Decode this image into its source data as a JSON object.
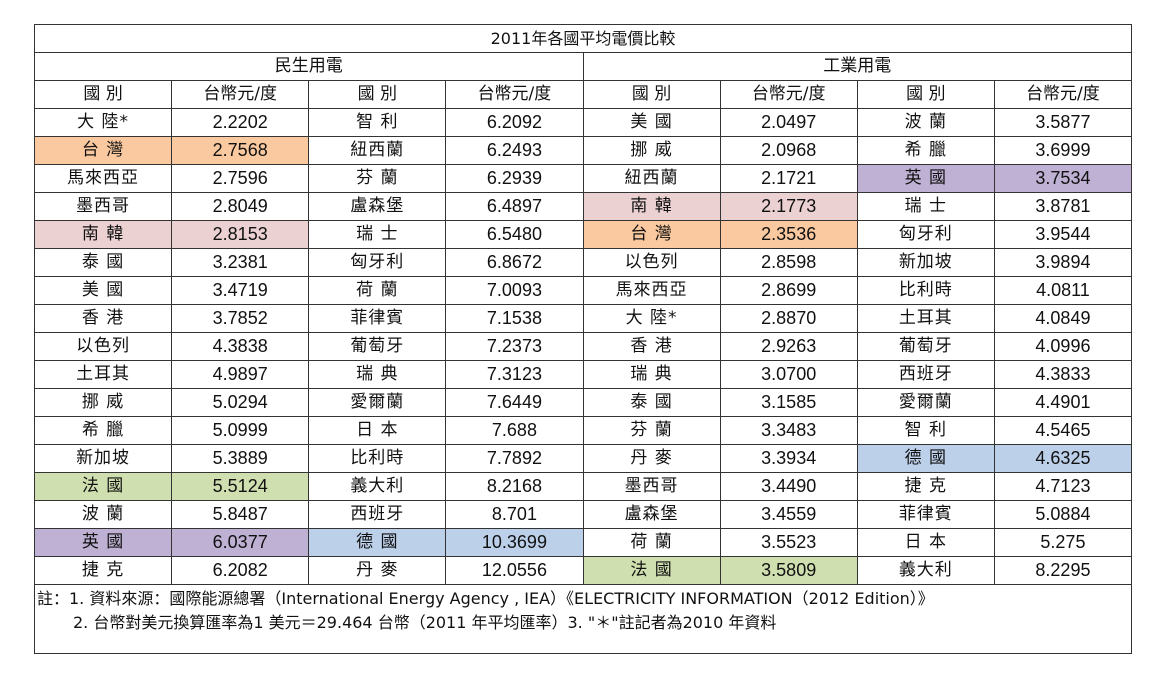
{
  "title": "2011年各國平均電價比較",
  "sections": [
    "民生用電",
    "工業用電"
  ],
  "column_headers": [
    "國 別",
    "台幣元/度",
    "國 別",
    "台幣元/度",
    "國 別",
    "台幣元/度",
    "國 別",
    "台幣元/度"
  ],
  "highlight_colors": {
    "taiwan": "#fbc99f",
    "korea": "#ecd1d2",
    "france": "#d0dfb0",
    "uk": "#bfb1d3",
    "germany": "#bcd0ea"
  },
  "rows": [
    [
      [
        "大 陸*",
        "2.2202",
        ""
      ],
      [
        "智 利",
        "6.2092",
        ""
      ],
      [
        "美 國",
        "2.0497",
        ""
      ],
      [
        "波 蘭",
        "3.5877",
        ""
      ]
    ],
    [
      [
        "台 灣",
        "2.7568",
        "taiwan"
      ],
      [
        "紐西蘭",
        "6.2493",
        ""
      ],
      [
        "挪 威",
        "2.0968",
        ""
      ],
      [
        "希 臘",
        "3.6999",
        ""
      ]
    ],
    [
      [
        "馬來西亞",
        "2.7596",
        ""
      ],
      [
        "芬 蘭",
        "6.2939",
        ""
      ],
      [
        "紐西蘭",
        "2.1721",
        ""
      ],
      [
        "英 國",
        "3.7534",
        "uk"
      ]
    ],
    [
      [
        "墨西哥",
        "2.8049",
        ""
      ],
      [
        "盧森堡",
        "6.4897",
        ""
      ],
      [
        "南 韓",
        "2.1773",
        "korea"
      ],
      [
        "瑞 士",
        "3.8781",
        ""
      ]
    ],
    [
      [
        "南 韓",
        "2.8153",
        "korea"
      ],
      [
        "瑞 士",
        "6.5480",
        ""
      ],
      [
        "台 灣",
        "2.3536",
        "taiwan"
      ],
      [
        "匈牙利",
        "3.9544",
        ""
      ]
    ],
    [
      [
        "泰 國",
        "3.2381",
        ""
      ],
      [
        "匈牙利",
        "6.8672",
        ""
      ],
      [
        "以色列",
        "2.8598",
        ""
      ],
      [
        "新加坡",
        "3.9894",
        ""
      ]
    ],
    [
      [
        "美 國",
        "3.4719",
        ""
      ],
      [
        "荷 蘭",
        "7.0093",
        ""
      ],
      [
        "馬來西亞",
        "2.8699",
        ""
      ],
      [
        "比利時",
        "4.0811",
        ""
      ]
    ],
    [
      [
        "香 港",
        "3.7852",
        ""
      ],
      [
        "菲律賓",
        "7.1538",
        ""
      ],
      [
        "大 陸*",
        "2.8870",
        ""
      ],
      [
        "土耳其",
        "4.0849",
        ""
      ]
    ],
    [
      [
        "以色列",
        "4.3838",
        ""
      ],
      [
        "葡萄牙",
        "7.2373",
        ""
      ],
      [
        "香 港",
        "2.9263",
        ""
      ],
      [
        "葡萄牙",
        "4.0996",
        ""
      ]
    ],
    [
      [
        "土耳其",
        "4.9897",
        ""
      ],
      [
        "瑞 典",
        "7.3123",
        ""
      ],
      [
        "瑞 典",
        "3.0700",
        ""
      ],
      [
        "西班牙",
        "4.3833",
        ""
      ]
    ],
    [
      [
        "挪 威",
        "5.0294",
        ""
      ],
      [
        "愛爾蘭",
        "7.6449",
        ""
      ],
      [
        "泰 國",
        "3.1585",
        ""
      ],
      [
        "愛爾蘭",
        "4.4901",
        ""
      ]
    ],
    [
      [
        "希 臘",
        "5.0999",
        ""
      ],
      [
        "日 本",
        "7.688",
        ""
      ],
      [
        "芬 蘭",
        "3.3483",
        ""
      ],
      [
        "智 利",
        "4.5465",
        ""
      ]
    ],
    [
      [
        "新加坡",
        "5.3889",
        ""
      ],
      [
        "比利時",
        "7.7892",
        ""
      ],
      [
        "丹 麥",
        "3.3934",
        ""
      ],
      [
        "德 國",
        "4.6325",
        "germany"
      ]
    ],
    [
      [
        "法 國",
        "5.5124",
        "france"
      ],
      [
        "義大利",
        "8.2168",
        ""
      ],
      [
        "墨西哥",
        "3.4490",
        ""
      ],
      [
        "捷 克",
        "4.7123",
        ""
      ]
    ],
    [
      [
        "波 蘭",
        "5.8487",
        ""
      ],
      [
        "西班牙",
        "8.701",
        ""
      ],
      [
        "盧森堡",
        "3.4559",
        ""
      ],
      [
        "菲律賓",
        "5.0884",
        ""
      ]
    ],
    [
      [
        "英 國",
        "6.0377",
        "uk"
      ],
      [
        "德 國",
        "10.3699",
        "germany"
      ],
      [
        "荷 蘭",
        "3.5523",
        ""
      ],
      [
        "日 本",
        "5.275",
        ""
      ]
    ],
    [
      [
        "捷 克",
        "6.2082",
        ""
      ],
      [
        "丹 麥",
        "12.0556",
        ""
      ],
      [
        "法 國",
        "3.5809",
        "france"
      ],
      [
        "義大利",
        "8.2295",
        ""
      ]
    ]
  ],
  "notes": {
    "line1": "註：1. 資料來源：國際能源總署（International Energy Agency , IEA）《ELECTRICITY INFORMATION（2012 Edition）》",
    "line2": "2. 台幣對美元換算匯率為1 美元＝29.464 台幣（2011 年平均匯率）3. \"＊\"註記者為2010 年資料"
  }
}
